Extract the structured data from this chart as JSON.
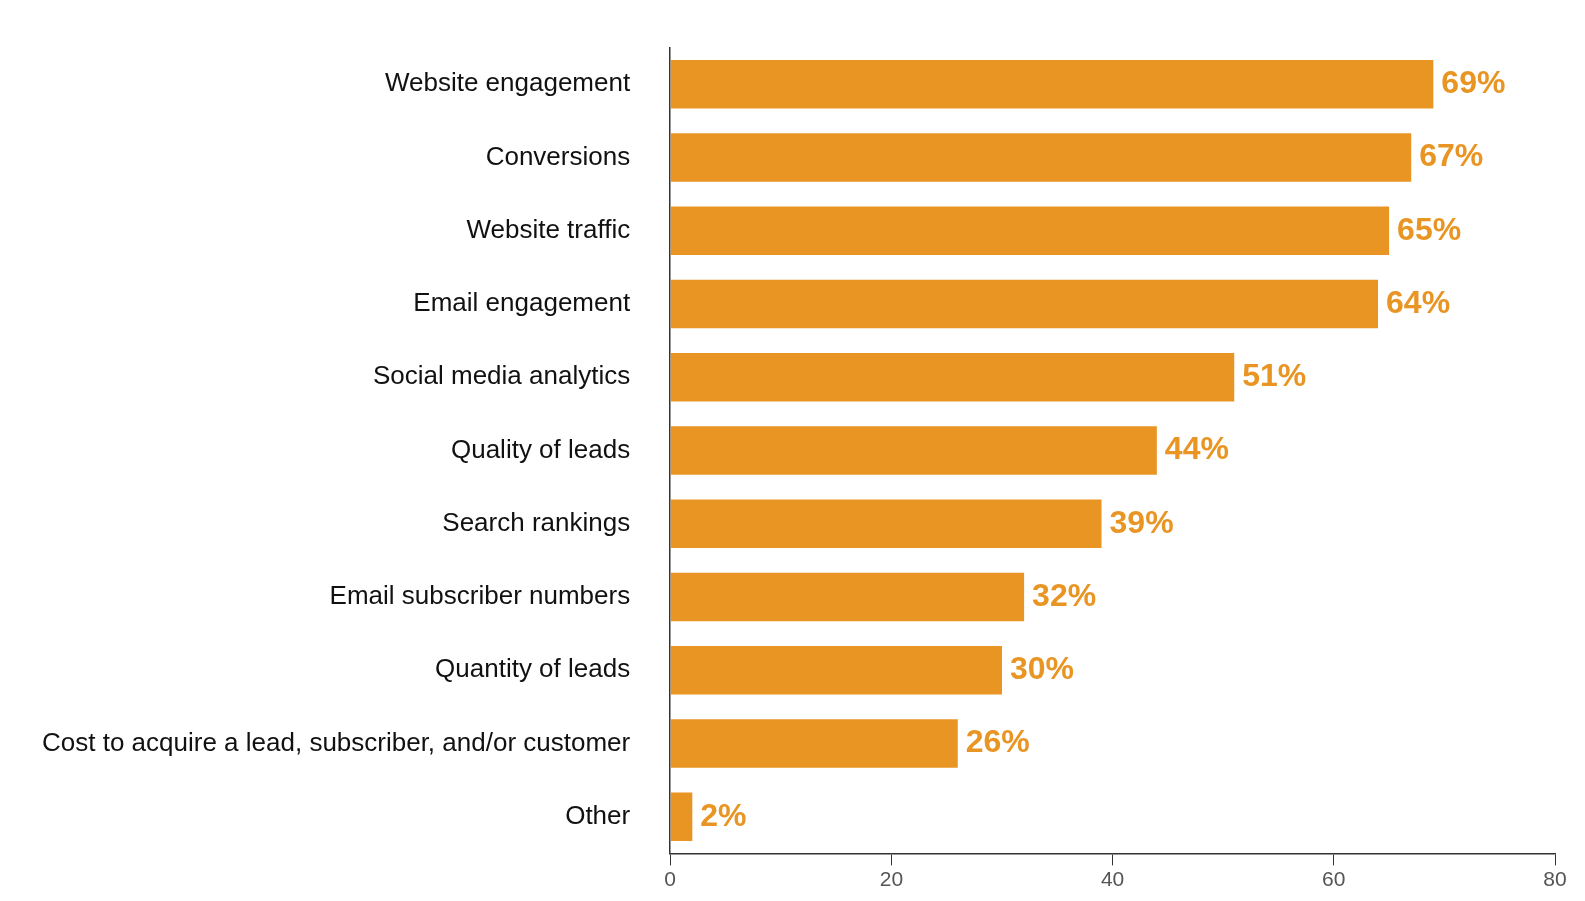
{
  "chart_data": {
    "type": "bar",
    "orientation": "horizontal",
    "categories": [
      "Website engagement",
      "Conversions",
      "Website traffic",
      "Email engagement",
      "Social media analytics",
      "Quality of leads",
      "Search rankings",
      "Email subscriber numbers",
      "Quantity of leads",
      "Cost to acquire a lead, subscriber, and/or customer",
      "Other"
    ],
    "values": [
      69,
      67,
      65,
      64,
      51,
      44,
      39,
      32,
      30,
      26,
      2
    ],
    "value_labels": [
      "69%",
      "67%",
      "65%",
      "64%",
      "51%",
      "44%",
      "39%",
      "32%",
      "30%",
      "26%",
      "2%"
    ],
    "color": "#e99523",
    "xlim": [
      0,
      80
    ],
    "xticks": [
      0,
      20,
      40,
      60,
      80
    ],
    "grid": false,
    "legend": false
  }
}
